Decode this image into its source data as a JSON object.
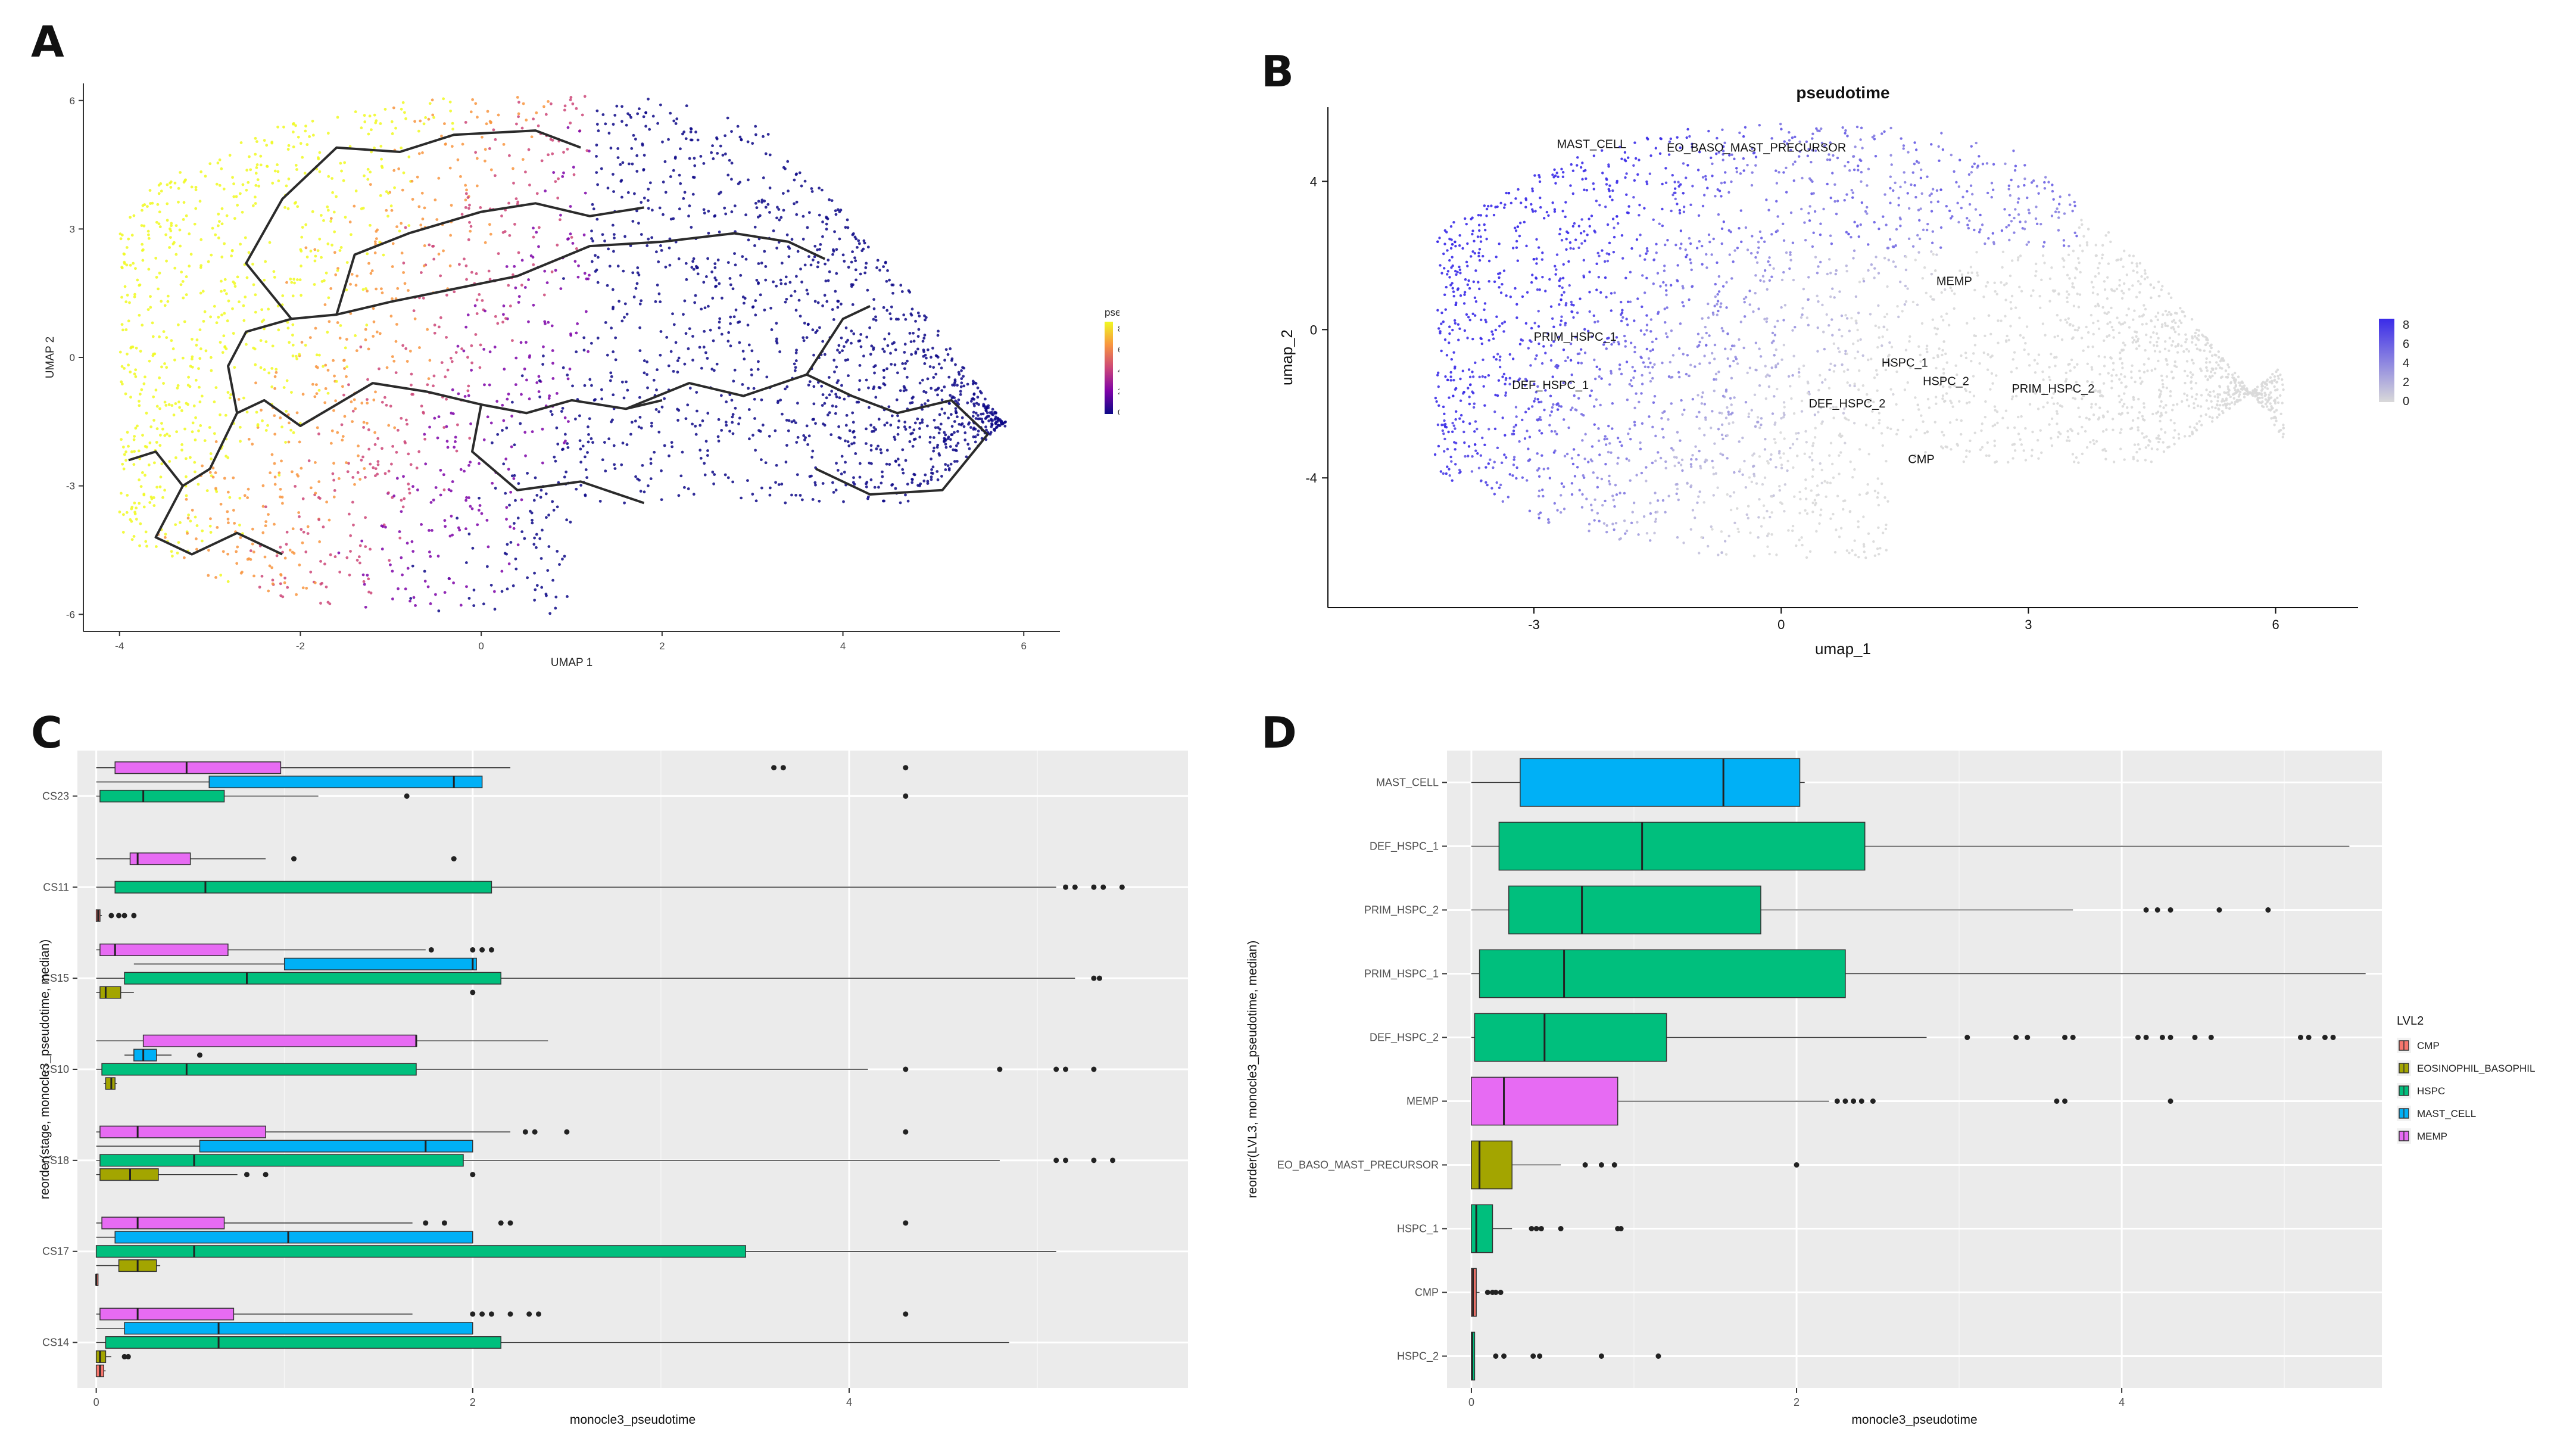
{
  "panel_labels": [
    "A",
    "B",
    "C",
    "D"
  ],
  "chart_data": [
    {
      "panel": "A",
      "type": "scatter",
      "title": "",
      "xlabel": "UMAP 1",
      "ylabel": "UMAP 2",
      "xlim": [
        -4.4,
        6.4
      ],
      "ylim": [
        -6.4,
        6.4
      ],
      "xticks": [
        "-4",
        "-2",
        "0",
        "2",
        "4",
        "6"
      ],
      "yticks": [
        "-6",
        "-3",
        "0",
        "3",
        "6"
      ],
      "grid": false,
      "legend": {
        "title": "pseudotime",
        "placement": "right",
        "ticks": [
          "8",
          "6",
          "4",
          "2",
          "0"
        ],
        "colors": [
          "#0d0887",
          "#7e03a8",
          "#cc4778",
          "#f89540",
          "#f0f921"
        ]
      },
      "trajectory_color": "#2b2b2b"
    },
    {
      "panel": "B",
      "type": "scatter",
      "title": "pseudotime",
      "xlabel": "umap_1",
      "ylabel": "umap_2",
      "xlim": [
        -5.5,
        7
      ],
      "ylim": [
        -7.5,
        6
      ],
      "xticks": [
        "-3",
        "0",
        "3",
        "6"
      ],
      "yticks": [
        "4",
        "0",
        "-4"
      ],
      "grid": false,
      "legend": {
        "placement": "right",
        "ticks": [
          "8",
          "6",
          "4",
          "2",
          "0"
        ],
        "colors": [
          "#d9d9d9",
          "#3a2be8"
        ]
      },
      "cluster_labels": [
        {
          "text": "MAST_CELL",
          "x": -2.3,
          "y": 4.9
        },
        {
          "text": "EO_BASO_MAST_PRECURSOR",
          "x": -0.3,
          "y": 4.8
        },
        {
          "text": "MEMP",
          "x": 2.1,
          "y": 1.2
        },
        {
          "text": "PRIM_HSPC_1",
          "x": -2.5,
          "y": -0.3
        },
        {
          "text": "HSPC_1",
          "x": 1.5,
          "y": -1.0
        },
        {
          "text": "HSPC_2",
          "x": 2.0,
          "y": -1.5
        },
        {
          "text": "DEF_HSPC_1",
          "x": -2.8,
          "y": -1.6
        },
        {
          "text": "PRIM_HSPC_2",
          "x": 3.3,
          "y": -1.7
        },
        {
          "text": "DEF_HSPC_2",
          "x": 0.8,
          "y": -2.1
        },
        {
          "text": "CMP",
          "x": 1.7,
          "y": -3.6
        }
      ]
    },
    {
      "panel": "C",
      "type": "box",
      "xlabel": "monocle3_pseudotime",
      "ylabel": "reorder(stage, monocle3_pseudotime, median)",
      "xlim": [
        -0.1,
        5.8
      ],
      "xticks": [
        0,
        2,
        4
      ],
      "categories": [
        "CS23",
        "CS11",
        "CS15",
        "CS10",
        "CS18",
        "CS17",
        "CS14"
      ],
      "groups": [
        "MEMP",
        "MAST_CELL",
        "HSPC",
        "EOSINOPHIL_BASOPHIL",
        "CMP"
      ],
      "colors": {
        "CMP": "#f8766d",
        "EOSINOPHIL_BASOPHIL": "#a3a500",
        "HSPC": "#00bf7d",
        "MAST_CELL": "#00b0f6",
        "MEMP": "#e76bf3"
      },
      "boxes": [
        {
          "category": "CS23",
          "group": "MEMP",
          "lw": 0.0,
          "q1": 0.1,
          "med": 0.48,
          "q3": 0.98,
          "uw": 2.2,
          "outliers": [
            3.6,
            3.65,
            4.3
          ]
        },
        {
          "category": "CS23",
          "group": "MAST_CELL",
          "lw": 0.0,
          "q1": 0.6,
          "med": 1.9,
          "q3": 2.05,
          "uw": 2.05,
          "outliers": []
        },
        {
          "category": "CS23",
          "group": "HSPC",
          "lw": 0.0,
          "q1": 0.02,
          "med": 0.25,
          "q3": 0.68,
          "uw": 1.18,
          "outliers": [
            1.65,
            4.3
          ]
        },
        {
          "category": "CS11",
          "group": "MEMP",
          "lw": 0.0,
          "q1": 0.18,
          "med": 0.22,
          "q3": 0.5,
          "uw": 0.9,
          "outliers": [
            1.05,
            1.9
          ]
        },
        {
          "category": "CS11",
          "group": "HSPC",
          "lw": 0.0,
          "q1": 0.1,
          "med": 0.58,
          "q3": 2.1,
          "uw": 5.1,
          "outliers": [
            5.15,
            5.2,
            5.3,
            5.35,
            5.45
          ]
        },
        {
          "category": "CS11",
          "group": "CMP",
          "lw": 0.0,
          "q1": 0.0,
          "med": 0.01,
          "q3": 0.02,
          "uw": 0.03,
          "outliers": [
            0.08,
            0.12,
            0.15,
            0.2
          ]
        },
        {
          "category": "CS15",
          "group": "MEMP",
          "lw": 0.0,
          "q1": 0.02,
          "med": 0.1,
          "q3": 0.7,
          "uw": 1.75,
          "outliers": [
            1.78,
            2.0,
            2.05,
            2.1
          ]
        },
        {
          "category": "CS15",
          "group": "MAST_CELL",
          "lw": 0.2,
          "q1": 1.0,
          "med": 2.0,
          "q3": 2.02,
          "uw": 2.02,
          "outliers": []
        },
        {
          "category": "CS15",
          "group": "HSPC",
          "lw": 0.0,
          "q1": 0.15,
          "med": 0.8,
          "q3": 2.15,
          "uw": 5.2,
          "outliers": [
            5.3,
            5.33
          ]
        },
        {
          "category": "CS15",
          "group": "EOSINOPHIL_BASOPHIL",
          "lw": 0.0,
          "q1": 0.02,
          "med": 0.05,
          "q3": 0.13,
          "uw": 0.2,
          "outliers": [
            2.0
          ]
        },
        {
          "category": "CS10",
          "group": "MEMP",
          "lw": 0.0,
          "q1": 0.25,
          "med": 1.7,
          "q3": 1.7,
          "uw": 2.4,
          "outliers": []
        },
        {
          "category": "CS10",
          "group": "MAST_CELL",
          "lw": 0.15,
          "q1": 0.2,
          "med": 0.25,
          "q3": 0.32,
          "uw": 0.4,
          "outliers": [
            0.55
          ]
        },
        {
          "category": "CS10",
          "group": "HSPC",
          "lw": 0.0,
          "q1": 0.03,
          "med": 0.48,
          "q3": 1.7,
          "uw": 4.1,
          "outliers": [
            4.3,
            4.8,
            5.1,
            5.15,
            5.3
          ]
        },
        {
          "category": "CS10",
          "group": "EOSINOPHIL_BASOPHIL",
          "lw": 0.04,
          "q1": 0.05,
          "med": 0.08,
          "q3": 0.1,
          "uw": 0.11,
          "outliers": []
        },
        {
          "category": "CS18",
          "group": "MEMP",
          "lw": 0.0,
          "q1": 0.02,
          "med": 0.22,
          "q3": 0.9,
          "uw": 2.2,
          "outliers": [
            2.28,
            2.33,
            2.5,
            4.3
          ]
        },
        {
          "category": "CS18",
          "group": "MAST_CELL",
          "lw": 0.0,
          "q1": 0.55,
          "med": 1.75,
          "q3": 2.0,
          "uw": 2.0,
          "outliers": []
        },
        {
          "category": "CS18",
          "group": "HSPC",
          "lw": 0.0,
          "q1": 0.02,
          "med": 0.52,
          "q3": 1.95,
          "uw": 4.8,
          "outliers": [
            5.1,
            5.15,
            5.3,
            5.4
          ]
        },
        {
          "category": "CS18",
          "group": "EOSINOPHIL_BASOPHIL",
          "lw": 0.0,
          "q1": 0.02,
          "med": 0.18,
          "q3": 0.33,
          "uw": 0.75,
          "outliers": [
            0.8,
            0.9,
            2.0
          ]
        },
        {
          "category": "CS17",
          "group": "MEMP",
          "lw": 0.0,
          "q1": 0.03,
          "med": 0.22,
          "q3": 0.68,
          "uw": 1.68,
          "outliers": [
            1.75,
            1.85,
            2.15,
            2.2,
            4.3
          ]
        },
        {
          "category": "CS17",
          "group": "MAST_CELL",
          "lw": 0.0,
          "q1": 0.1,
          "med": 1.02,
          "q3": 2.0,
          "uw": 2.0,
          "outliers": []
        },
        {
          "category": "CS17",
          "group": "HSPC",
          "lw": 0.0,
          "q1": 0.0,
          "med": 0.52,
          "q3": 3.45,
          "uw": 5.1,
          "outliers": []
        },
        {
          "category": "CS17",
          "group": "EOSINOPHIL_BASOPHIL",
          "lw": 0.0,
          "q1": 0.12,
          "med": 0.22,
          "q3": 0.32,
          "uw": 0.34,
          "outliers": []
        },
        {
          "category": "CS17",
          "group": "CMP",
          "lw": 0.0,
          "q1": 0.0,
          "med": 0.0,
          "q3": 0.005,
          "uw": 0.005,
          "outliers": []
        },
        {
          "category": "CS14",
          "group": "MEMP",
          "lw": 0.0,
          "q1": 0.02,
          "med": 0.22,
          "q3": 0.73,
          "uw": 1.68,
          "outliers": [
            2.0,
            2.05,
            2.1,
            2.2,
            2.3,
            2.35,
            4.3
          ]
        },
        {
          "category": "CS14",
          "group": "MAST_CELL",
          "lw": 0.0,
          "q1": 0.15,
          "med": 0.65,
          "q3": 2.0,
          "uw": 2.0,
          "outliers": []
        },
        {
          "category": "CS14",
          "group": "HSPC",
          "lw": 0.0,
          "q1": 0.05,
          "med": 0.65,
          "q3": 2.15,
          "uw": 4.85,
          "outliers": []
        },
        {
          "category": "CS14",
          "group": "EOSINOPHIL_BASOPHIL",
          "lw": 0.0,
          "q1": 0.0,
          "med": 0.02,
          "q3": 0.05,
          "uw": 0.08,
          "outliers": [
            0.15,
            0.17
          ]
        },
        {
          "category": "CS14",
          "group": "CMP",
          "lw": 0.0,
          "q1": 0.0,
          "med": 0.02,
          "q3": 0.04,
          "uw": 0.05,
          "outliers": []
        }
      ]
    },
    {
      "panel": "D",
      "type": "box",
      "xlabel": "monocle3_pseudotime",
      "ylabel": "reorder(LVL3, monocle3_pseudotime, median)",
      "xlim": [
        -0.15,
        5.6
      ],
      "xticks": [
        0,
        2,
        4
      ],
      "legend": {
        "title": "LVL2",
        "placement": "right",
        "entries": [
          "CMP",
          "EOSINOPHIL_BASOPHIL",
          "HSPC",
          "MAST_CELL",
          "MEMP"
        ]
      },
      "colors": {
        "CMP": "#f8766d",
        "EOSINOPHIL_BASOPHIL": "#a3a500",
        "HSPC": "#00bf7d",
        "MAST_CELL": "#00b0f6",
        "MEMP": "#e76bf3"
      },
      "categories": [
        "MAST_CELL",
        "DEF_HSPC_1",
        "PRIM_HSPC_2",
        "PRIM_HSPC_1",
        "DEF_HSPC_2",
        "MEMP",
        "EO_BASO_MAST_PRECURSOR",
        "HSPC_1",
        "CMP",
        "HSPC_2"
      ],
      "boxes": [
        {
          "category": "MAST_CELL",
          "group": "MAST_CELL",
          "lw": 0.0,
          "q1": 0.3,
          "med": 1.55,
          "q3": 2.02,
          "uw": 2.05,
          "outliers": []
        },
        {
          "category": "DEF_HSPC_1",
          "group": "HSPC",
          "lw": 0.0,
          "q1": 0.17,
          "med": 1.05,
          "q3": 2.42,
          "uw": 5.4,
          "outliers": []
        },
        {
          "category": "PRIM_HSPC_2",
          "group": "HSPC",
          "lw": 0.0,
          "q1": 0.23,
          "med": 0.68,
          "q3": 1.78,
          "uw": 3.7,
          "outliers": [
            4.15,
            4.22,
            4.3,
            4.6,
            4.9
          ]
        },
        {
          "category": "PRIM_HSPC_1",
          "group": "HSPC",
          "lw": 0.0,
          "q1": 0.05,
          "med": 0.57,
          "q3": 2.3,
          "uw": 5.5,
          "outliers": []
        },
        {
          "category": "DEF_HSPC_2",
          "group": "HSPC",
          "lw": 0.0,
          "q1": 0.02,
          "med": 0.45,
          "q3": 1.2,
          "uw": 2.8,
          "outliers": [
            3.05,
            3.35,
            3.42,
            3.65,
            3.7,
            4.1,
            4.15,
            4.25,
            4.3,
            4.45,
            4.55,
            5.1,
            5.15,
            5.25,
            5.3
          ]
        },
        {
          "category": "MEMP",
          "group": "MEMP",
          "lw": 0.0,
          "q1": 0.0,
          "med": 0.2,
          "q3": 0.9,
          "uw": 2.2,
          "outliers": [
            2.25,
            2.3,
            2.35,
            2.4,
            2.47,
            3.6,
            3.65,
            4.3
          ]
        },
        {
          "category": "EO_BASO_MAST_PRECURSOR",
          "group": "EOSINOPHIL_BASOPHIL",
          "lw": 0.0,
          "q1": 0.0,
          "med": 0.05,
          "q3": 0.25,
          "uw": 0.55,
          "outliers": [
            0.7,
            0.8,
            0.88,
            2.0
          ]
        },
        {
          "category": "HSPC_1",
          "group": "HSPC",
          "lw": 0.0,
          "q1": 0.0,
          "med": 0.03,
          "q3": 0.13,
          "uw": 0.25,
          "outliers": [
            0.37,
            0.4,
            0.43,
            0.55,
            0.9,
            0.92
          ]
        },
        {
          "category": "CMP",
          "group": "CMP",
          "lw": 0.0,
          "q1": 0.0,
          "med": 0.01,
          "q3": 0.03,
          "uw": 0.05,
          "outliers": [
            0.1,
            0.13,
            0.15,
            0.18
          ]
        },
        {
          "category": "HSPC_2",
          "group": "HSPC",
          "lw": 0.0,
          "q1": 0.0,
          "med": 0.005,
          "q3": 0.02,
          "uw": 0.02,
          "outliers": [
            0.15,
            0.2,
            0.38,
            0.42,
            0.8,
            1.15
          ]
        }
      ]
    }
  ]
}
